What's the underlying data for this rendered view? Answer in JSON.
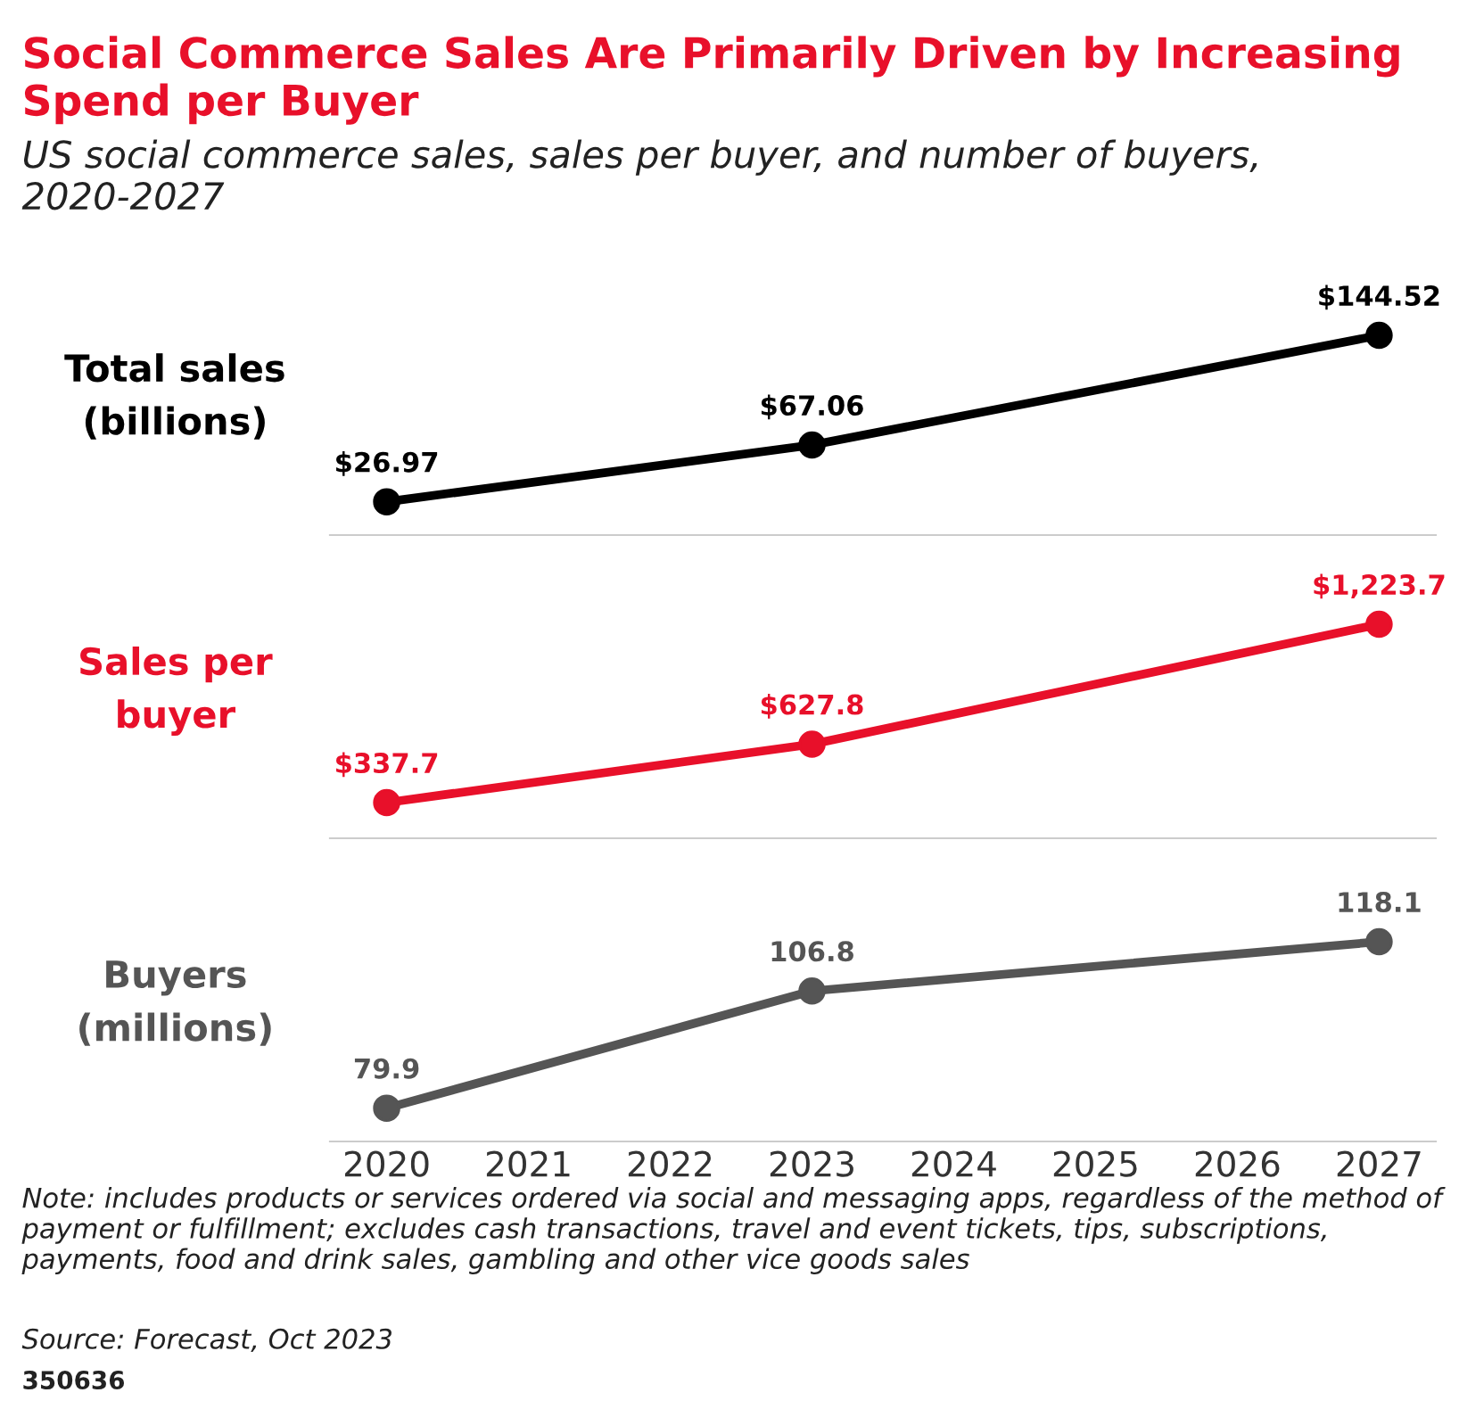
{
  "chart_data": [
    {
      "type": "line",
      "title": "Social Commerce Sales Are Primarily Driven by Increasing Spend per Buyer",
      "subtitle": "US social commerce sales, sales per buyer, and number of buyers, 2020-2027",
      "ylabel": "Total sales\n(billions)",
      "x": [
        2020,
        2023,
        2027
      ],
      "values": [
        26.97,
        67.06,
        144.52
      ],
      "value_labels": [
        "$26.97",
        "$67.06",
        "$144.52"
      ],
      "color": "#000000",
      "marker": "circle",
      "tick_labels": false
    },
    {
      "type": "line",
      "ylabel": "Sales per\nbuyer",
      "x": [
        2020,
        2023,
        2027
      ],
      "values": [
        337.7,
        627.8,
        1223.7
      ],
      "value_labels": [
        "$337.7",
        "$627.8",
        "$1,223.7"
      ],
      "color": "#e8102a",
      "marker": "circle",
      "tick_labels": false
    },
    {
      "type": "line",
      "ylabel": "Buyers\n(millions)",
      "x": [
        2020,
        2023,
        2027
      ],
      "values": [
        79.9,
        106.8,
        118.1
      ],
      "value_labels": [
        "79.9",
        "106.8",
        "118.1"
      ],
      "color": "#555555",
      "marker": "circle",
      "xlim": [
        2019.6,
        2027.4
      ],
      "xticks": [
        2020,
        2021,
        2022,
        2023,
        2024,
        2025,
        2026,
        2027
      ],
      "tick_labels": "x",
      "annotations": [
        "Note: includes products or services ordered via social and messaging apps, regardless of the method of payment or fulfillment; excludes cash transactions, travel and event tickets, tips, subscriptions, payments, food and drink sales, gambling and other vice goods sales",
        "Source: Forecast, Oct 2023",
        "350636"
      ]
    }
  ]
}
